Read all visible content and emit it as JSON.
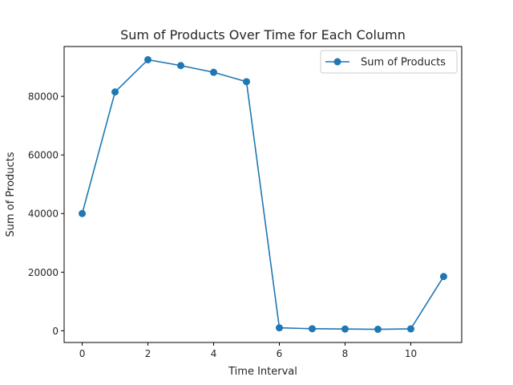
{
  "chart_data": {
    "type": "line",
    "title": "Sum of Products Over Time for Each Column",
    "xlabel": "Time Interval",
    "ylabel": "Sum of Products",
    "x": [
      0,
      1,
      2,
      3,
      4,
      5,
      6,
      7,
      8,
      9,
      10,
      11
    ],
    "series": [
      {
        "name": "Sum of Products",
        "color": "#1f77b4",
        "values": [
          40000,
          81500,
          92500,
          90500,
          88200,
          85000,
          1000,
          700,
          600,
          500,
          650,
          18500
        ]
      }
    ],
    "xlim": [
      -0.55,
      11.55
    ],
    "ylim": [
      -4000,
      97000
    ],
    "xticks": [
      0,
      2,
      4,
      6,
      8,
      10
    ],
    "xtick_labels": [
      "0",
      "2",
      "4",
      "6",
      "8",
      "10"
    ],
    "yticks": [
      0,
      20000,
      40000,
      60000,
      80000
    ],
    "ytick_labels": [
      "0",
      "20000",
      "40000",
      "60000",
      "80000"
    ],
    "grid": false,
    "legend_position": "top-right",
    "markers": true
  }
}
